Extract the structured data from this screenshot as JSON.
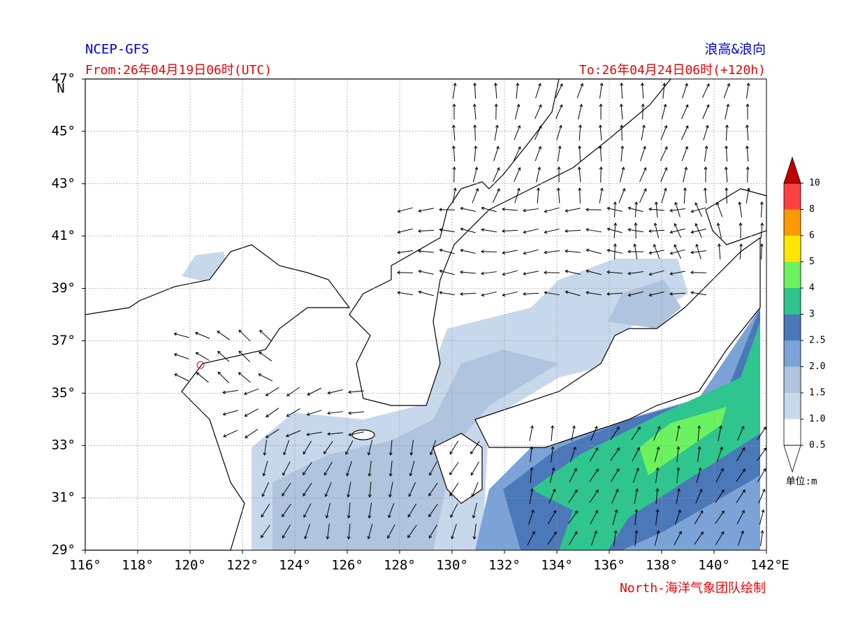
{
  "header": {
    "model": "NCEP-GFS",
    "from": "From:26年04月19日06时(UTC)",
    "product": "浪高&浪向",
    "to": "To:26年04月24日06时(+120h)"
  },
  "axes": {
    "lat_labels": [
      "47°",
      "45°",
      "43°",
      "41°",
      "39°",
      "37°",
      "35°",
      "33°",
      "31°",
      "29°"
    ],
    "lat_unit": "N",
    "lon_labels": [
      "116°",
      "118°",
      "120°",
      "122°",
      "124°",
      "126°",
      "128°",
      "130°",
      "132°",
      "134°",
      "136°",
      "138°",
      "140°",
      "142°"
    ],
    "lon_unit": "E"
  },
  "colorbar": {
    "labels": [
      "10",
      "8",
      "6",
      "5",
      "4",
      "3",
      "2.5",
      "2.0",
      "1.5",
      "1.0",
      "0.5"
    ],
    "colors": [
      "#ff4040",
      "#ff9900",
      "#ffe600",
      "#6cf25e",
      "#2ec58f",
      "#4a78b8",
      "#7ba3d8",
      "#b0c4de",
      "#c8d8ec",
      "#ffffff"
    ],
    "top_color": "#c00000",
    "unit": "单位:m"
  },
  "credit": "North-海洋气象团队绘制"
}
